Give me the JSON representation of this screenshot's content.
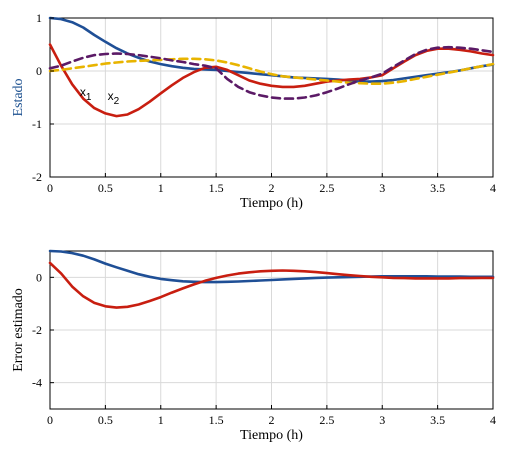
{
  "chart_data": [
    {
      "type": "line",
      "xlabel": "Tiempo (h)",
      "ylabel": "Estado",
      "xlim": [
        0,
        4
      ],
      "ylim": [
        -2,
        1
      ],
      "grid": true,
      "x_ticks": [
        "0",
        "0.5",
        "1",
        "1.5",
        "2",
        "2.5",
        "3",
        "3.5",
        "4"
      ],
      "y_ticks": [
        "1",
        "0",
        "-1",
        "-2"
      ],
      "annotations": [
        {
          "text": "x1",
          "x": 0.27,
          "y": -0.47
        },
        {
          "text": "x2",
          "x": 0.52,
          "y": -0.55
        }
      ],
      "x": [
        0,
        0.1,
        0.2,
        0.3,
        0.4,
        0.5,
        0.6,
        0.7,
        0.8,
        0.9,
        1.0,
        1.1,
        1.2,
        1.3,
        1.4,
        1.5,
        1.6,
        1.7,
        1.8,
        1.9,
        2.0,
        2.1,
        2.2,
        2.3,
        2.4,
        2.5,
        2.6,
        2.7,
        2.8,
        2.9,
        3.0,
        3.1,
        3.2,
        3.3,
        3.4,
        3.5,
        3.6,
        3.7,
        3.8,
        3.9,
        4.0
      ],
      "series": [
        {
          "color": "#1f4f96",
          "dash": "solid",
          "values": [
            1.0,
            0.98,
            0.92,
            0.82,
            0.68,
            0.55,
            0.43,
            0.33,
            0.25,
            0.18,
            0.13,
            0.09,
            0.06,
            0.04,
            0.03,
            0.02,
            0.0,
            -0.02,
            -0.04,
            -0.06,
            -0.08,
            -0.1,
            -0.12,
            -0.13,
            -0.14,
            -0.15,
            -0.16,
            -0.18,
            -0.2,
            -0.2,
            -0.19,
            -0.17,
            -0.14,
            -0.11,
            -0.08,
            -0.05,
            -0.02,
            0.01,
            0.05,
            0.09,
            0.12
          ]
        },
        {
          "color": "#c81e10",
          "dash": "solid",
          "values": [
            0.5,
            0.1,
            -0.25,
            -0.52,
            -0.7,
            -0.8,
            -0.85,
            -0.82,
            -0.72,
            -0.58,
            -0.42,
            -0.27,
            -0.13,
            -0.02,
            0.06,
            0.08,
            0.02,
            -0.08,
            -0.18,
            -0.24,
            -0.28,
            -0.3,
            -0.3,
            -0.28,
            -0.24,
            -0.2,
            -0.18,
            -0.16,
            -0.15,
            -0.12,
            -0.08,
            0.05,
            0.18,
            0.3,
            0.38,
            0.42,
            0.42,
            0.4,
            0.37,
            0.33,
            0.3
          ]
        },
        {
          "color": "#e8b400",
          "dash": "dashed",
          "values": [
            0.0,
            0.02,
            0.05,
            0.08,
            0.11,
            0.14,
            0.16,
            0.18,
            0.19,
            0.2,
            0.21,
            0.22,
            0.23,
            0.23,
            0.22,
            0.2,
            0.16,
            0.11,
            0.05,
            -0.01,
            -0.06,
            -0.1,
            -0.12,
            -0.14,
            -0.16,
            -0.18,
            -0.2,
            -0.22,
            -0.23,
            -0.24,
            -0.24,
            -0.22,
            -0.19,
            -0.15,
            -0.11,
            -0.07,
            -0.03,
            0.01,
            0.05,
            0.09,
            0.13
          ]
        },
        {
          "color": "#5b1a66",
          "dash": "dashed",
          "values": [
            0.05,
            0.1,
            0.18,
            0.25,
            0.3,
            0.32,
            0.33,
            0.32,
            0.3,
            0.27,
            0.24,
            0.2,
            0.17,
            0.13,
            0.1,
            0.05,
            -0.15,
            -0.3,
            -0.4,
            -0.46,
            -0.5,
            -0.52,
            -0.52,
            -0.5,
            -0.46,
            -0.4,
            -0.33,
            -0.25,
            -0.18,
            -0.12,
            -0.05,
            0.08,
            0.2,
            0.32,
            0.4,
            0.44,
            0.45,
            0.44,
            0.42,
            0.39,
            0.36
          ]
        }
      ]
    },
    {
      "type": "line",
      "xlabel": "Tiempo (h)",
      "ylabel": "Error estimado",
      "xlim": [
        0,
        4
      ],
      "ylim": [
        -5,
        1
      ],
      "grid": true,
      "x_ticks": [
        "0",
        "0.5",
        "1",
        "1.5",
        "2",
        "2.5",
        "3",
        "3.5",
        "4"
      ],
      "y_ticks": [
        "0",
        "-2",
        "-4"
      ],
      "x": [
        0,
        0.1,
        0.2,
        0.3,
        0.4,
        0.5,
        0.6,
        0.7,
        0.8,
        0.9,
        1.0,
        1.1,
        1.2,
        1.3,
        1.4,
        1.5,
        1.6,
        1.7,
        1.8,
        1.9,
        2.0,
        2.1,
        2.2,
        2.3,
        2.4,
        2.5,
        2.6,
        2.7,
        2.8,
        2.9,
        3.0,
        3.1,
        3.2,
        3.3,
        3.4,
        3.5,
        3.6,
        3.7,
        3.8,
        3.9,
        4.0
      ],
      "series": [
        {
          "color": "#1f4f96",
          "dash": "solid",
          "values": [
            1.0,
            0.98,
            0.92,
            0.82,
            0.68,
            0.52,
            0.38,
            0.25,
            0.12,
            0.02,
            -0.06,
            -0.11,
            -0.15,
            -0.17,
            -0.18,
            -0.18,
            -0.17,
            -0.16,
            -0.14,
            -0.12,
            -0.1,
            -0.08,
            -0.06,
            -0.04,
            -0.02,
            -0.01,
            0.0,
            0.01,
            0.02,
            0.03,
            0.04,
            0.04,
            0.04,
            0.04,
            0.04,
            0.03,
            0.03,
            0.03,
            0.02,
            0.02,
            0.02
          ]
        },
        {
          "color": "#c81e10",
          "dash": "solid",
          "values": [
            0.55,
            0.15,
            -0.35,
            -0.72,
            -0.97,
            -1.1,
            -1.15,
            -1.12,
            -1.03,
            -0.9,
            -0.75,
            -0.58,
            -0.42,
            -0.27,
            -0.13,
            -0.02,
            0.07,
            0.14,
            0.19,
            0.23,
            0.25,
            0.26,
            0.25,
            0.23,
            0.2,
            0.16,
            0.12,
            0.08,
            0.05,
            0.02,
            0.0,
            -0.02,
            -0.03,
            -0.04,
            -0.04,
            -0.04,
            -0.04,
            -0.03,
            -0.03,
            -0.02,
            -0.02
          ]
        }
      ]
    }
  ]
}
